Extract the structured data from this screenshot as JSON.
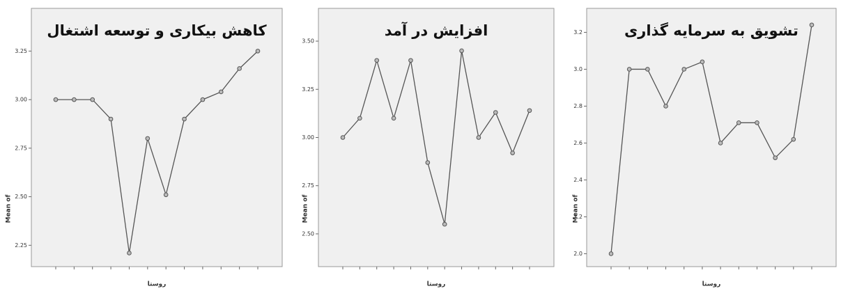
{
  "chart_data": [
    {
      "type": "line",
      "title": "کاهش بیکاری و توسعه اشتغال",
      "y_label": "Mean of",
      "x_label": "روستا",
      "categories": [
        null,
        null,
        null,
        null,
        null,
        null,
        null,
        null,
        null,
        null,
        null,
        null
      ],
      "values": [
        3.0,
        3.0,
        3.0,
        2.9,
        2.21,
        2.8,
        2.51,
        2.9,
        3.0,
        3.04,
        3.16,
        3.25
      ],
      "color": "#555555",
      "ylim": [
        2.14,
        3.47
      ],
      "yticks": [
        {
          "value": 2.25,
          "label": "2.25"
        },
        {
          "value": 2.5,
          "label": "2.50"
        },
        {
          "value": 2.75,
          "label": "2.75"
        },
        {
          "value": 3.0,
          "label": "3.00"
        },
        {
          "value": 3.25,
          "label": "3.25"
        }
      ]
    },
    {
      "type": "line",
      "title": "افزایش در آمد",
      "y_label": "Mean of",
      "x_label": "روستا",
      "categories": [
        null,
        null,
        null,
        null,
        null,
        null,
        null,
        null,
        null,
        null,
        null,
        null
      ],
      "values": [
        3.0,
        3.1,
        3.4,
        3.1,
        3.4,
        2.87,
        2.55,
        3.45,
        3.0,
        3.13,
        2.92,
        3.14
      ],
      "color": "#555555",
      "ylim": [
        2.33,
        3.67
      ],
      "yticks": [
        {
          "value": 2.5,
          "label": "2.50"
        },
        {
          "value": 2.75,
          "label": "2.75"
        },
        {
          "value": 3.0,
          "label": "3.00"
        },
        {
          "value": 3.25,
          "label": "3.25"
        },
        {
          "value": 3.5,
          "label": "3.50"
        }
      ]
    },
    {
      "type": "line",
      "title": "تشویق به سرمایه گذاری",
      "y_label": "Mean of",
      "x_label": "روستا",
      "categories": [
        null,
        null,
        null,
        null,
        null,
        null,
        null,
        null,
        null,
        null,
        null,
        null
      ],
      "values": [
        2.0,
        3.0,
        3.0,
        2.8,
        3.0,
        3.04,
        2.6,
        2.71,
        2.71,
        2.52,
        2.62,
        3.24
      ],
      "color": "#555555",
      "ylim": [
        1.93,
        3.33
      ],
      "yticks": [
        {
          "value": 2.0,
          "label": "2.0"
        },
        {
          "value": 2.2,
          "label": "2.2"
        },
        {
          "value": 2.4,
          "label": "2.4"
        },
        {
          "value": 2.6,
          "label": "2.6"
        },
        {
          "value": 2.8,
          "label": "2.8"
        },
        {
          "value": 3.0,
          "label": "3.0"
        },
        {
          "value": 3.2,
          "label": "3.2"
        }
      ]
    }
  ]
}
